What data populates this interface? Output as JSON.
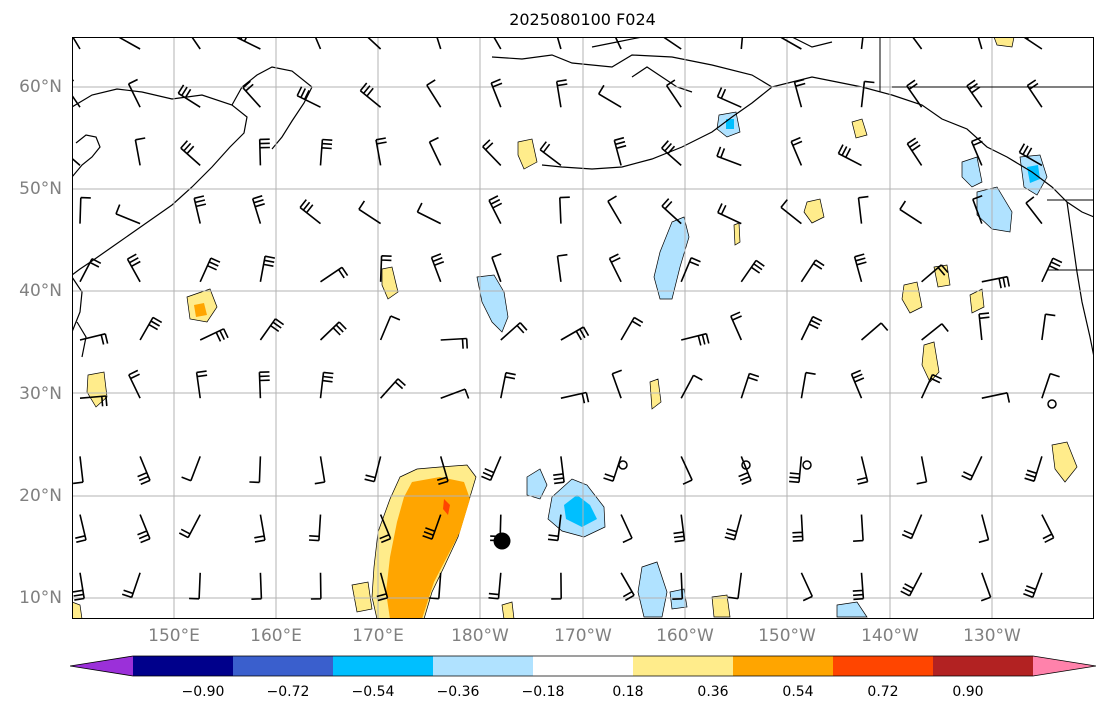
{
  "title": "2025080100 F024",
  "map": {
    "lat_labels": [
      "60°N",
      "50°N",
      "40°N",
      "30°N",
      "20°N",
      "10°N"
    ],
    "lon_labels": [
      "150°E",
      "160°E",
      "170°E",
      "180°W",
      "170°W",
      "160°W",
      "150°W",
      "140°W",
      "130°W"
    ]
  },
  "colorbar": {
    "labels": [
      "−0.90",
      "−0.72",
      "−0.54",
      "−0.36",
      "−0.18",
      "0.18",
      "0.36",
      "0.54",
      "0.72",
      "0.90"
    ],
    "colors": [
      "#9b30d9",
      "#00008b",
      "#3a5fcd",
      "#00bfff",
      "#b0e2ff",
      "#ffffff",
      "#ffec8b",
      "#ffa500",
      "#ff4500",
      "#b22222",
      "#ff82ab"
    ]
  },
  "fill_colors": {
    "light_blue": "#b0e2ff",
    "blue": "#00bfff",
    "yellow": "#ffec8b",
    "orange": "#ffa500",
    "red": "#ff4500"
  }
}
